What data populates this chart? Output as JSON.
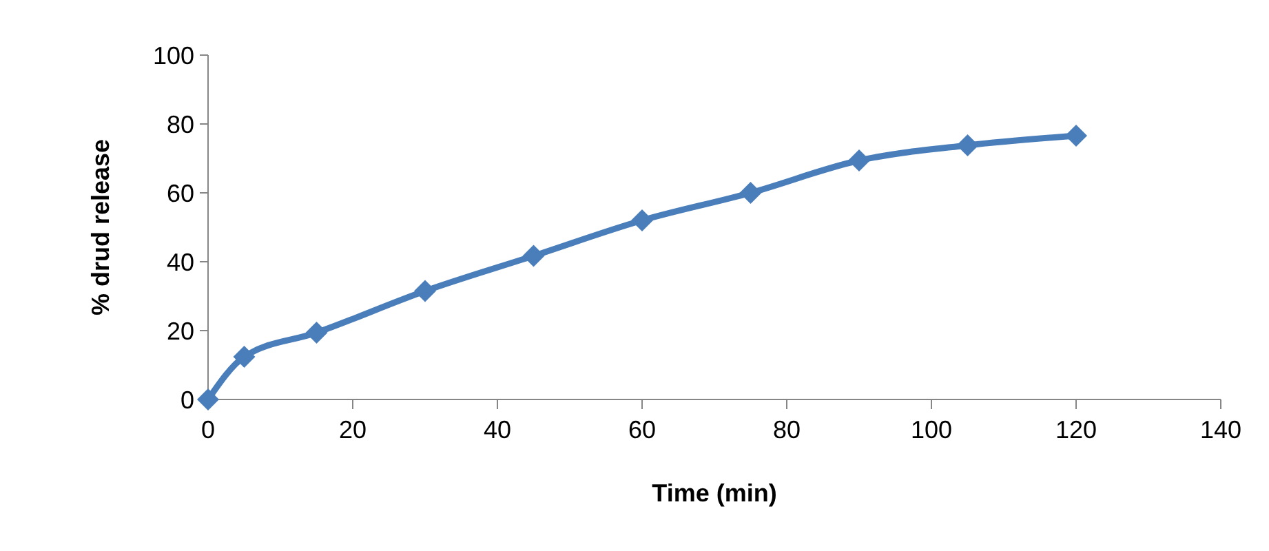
{
  "chart_data": {
    "type": "line",
    "xlabel": "Time (min)",
    "ylabel": "% drud release",
    "x": [
      0,
      5,
      15,
      30,
      45,
      60,
      75,
      90,
      105,
      120
    ],
    "series": [
      {
        "color": "#4a7ebb",
        "values": [
          0,
          12.4,
          19.4,
          31.5,
          41.7,
          52,
          60,
          69.4,
          73.8,
          76.6
        ]
      }
    ],
    "xlim": [
      0,
      140
    ],
    "xticks": [
      0,
      20,
      40,
      60,
      80,
      100,
      120,
      140
    ],
    "ylim": [
      0,
      100
    ],
    "yticks": [
      0,
      20,
      40,
      60,
      80,
      100
    ],
    "grid": false,
    "marker": "diamond",
    "line_style": "solid"
  }
}
